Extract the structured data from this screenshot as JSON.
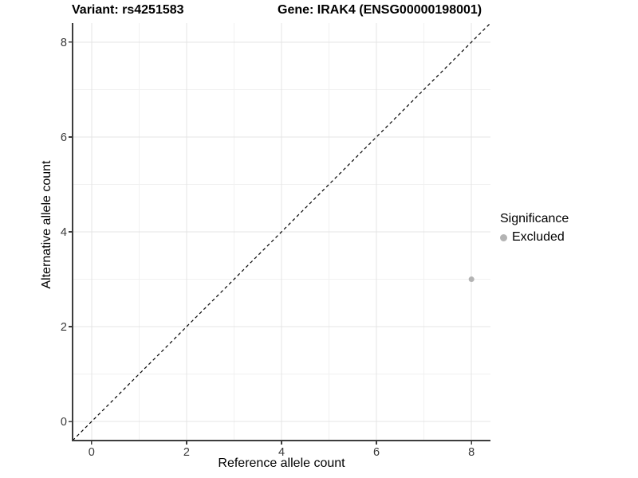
{
  "titles": {
    "left": "Variant: rs4251583",
    "right": "Gene: IRAK4 (ENSG00000198001)"
  },
  "legend": {
    "title": "Significance"
  },
  "colors": {
    "background": "#ffffff",
    "grid_major": "#e4e4e4",
    "grid_minor": "#f1f1f1",
    "axis_line": "#3d3d3d",
    "tick_text": "#383838",
    "identity_line": "#000000",
    "point_excluded": "#b3b3b3"
  },
  "chart_data": {
    "type": "scatter",
    "title": "Variant: rs4251583   Gene: IRAK4 (ENSG00000198001)",
    "xlabel": "Reference allele count",
    "ylabel": "Alternative allele count",
    "xlim": [
      -0.4,
      8.4
    ],
    "ylim": [
      -0.4,
      8.4
    ],
    "x_breaks": [
      0,
      2,
      4,
      6,
      8
    ],
    "x_minor_breaks": [
      1,
      3,
      5,
      7
    ],
    "y_breaks": [
      0,
      2,
      4,
      6,
      8
    ],
    "y_minor_breaks": [
      1,
      3,
      5,
      7
    ],
    "grid": true,
    "legend_position": "right",
    "legend_title": "Significance",
    "series": [
      {
        "name": "Excluded",
        "color": "#b3b3b3",
        "points": [
          {
            "x": 8,
            "y": 3
          }
        ]
      }
    ],
    "identity_line": {
      "slope": 1,
      "intercept": 0,
      "style": "dashed",
      "color": "#000000",
      "from": [
        -0.4,
        -0.4
      ],
      "to": [
        8.4,
        8.4
      ]
    }
  }
}
